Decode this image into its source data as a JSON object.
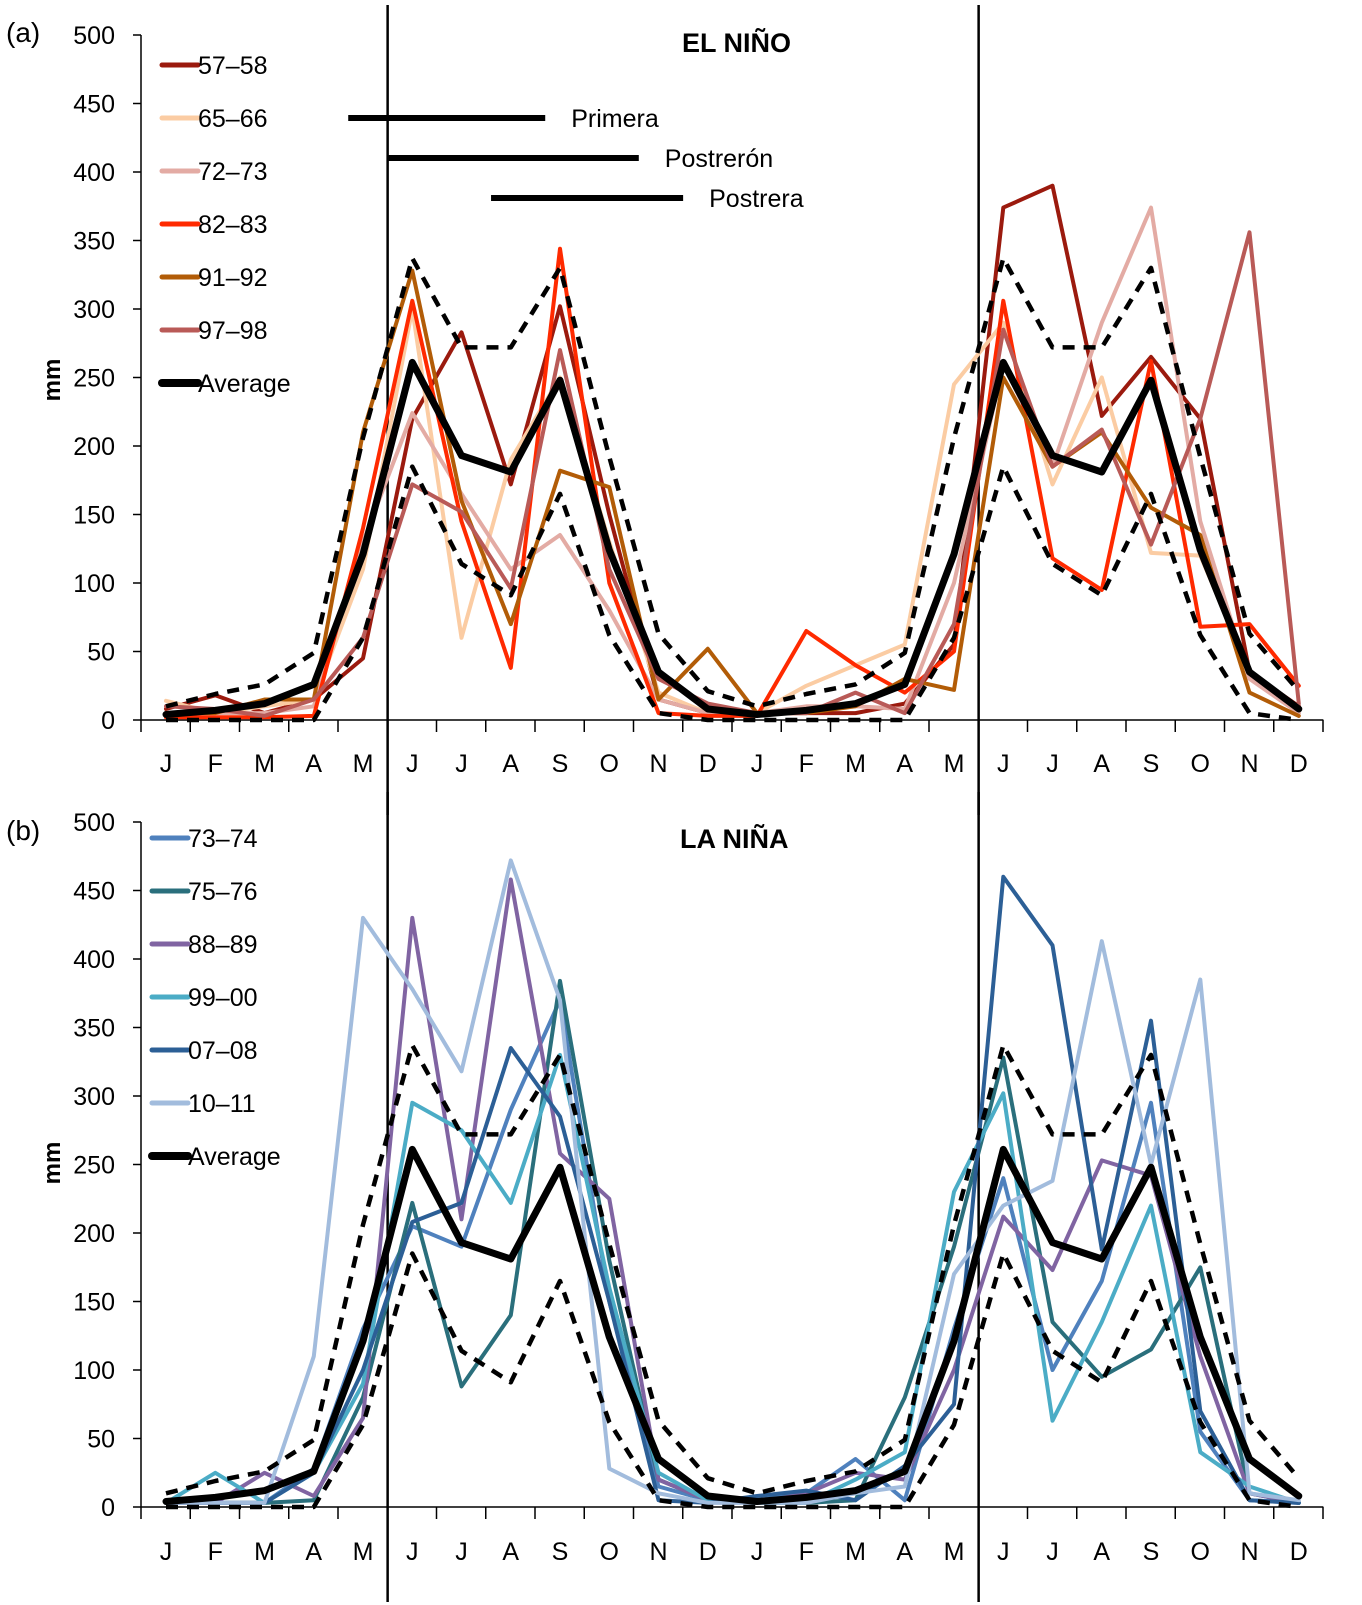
{
  "chart_data": [
    {
      "type": "line",
      "panel_label": "(a)",
      "title": "EL NIÑO",
      "xlabel": "",
      "ylabel": "mm",
      "ylim": [
        0,
        500
      ],
      "yticks": [
        0,
        50,
        100,
        150,
        200,
        250,
        300,
        350,
        400,
        450,
        500
      ],
      "categories": [
        "J",
        "F",
        "M",
        "A",
        "M",
        "J",
        "J",
        "A",
        "S",
        "O",
        "N",
        "D",
        "J",
        "F",
        "M",
        "A",
        "M",
        "J",
        "J",
        "A",
        "S",
        "O",
        "N",
        "D"
      ],
      "vertical_markers_after_category_index": [
        4,
        16
      ],
      "grid": false,
      "legend_position": "top-left",
      "seasons": [
        {
          "name": "Primera",
          "start_index": 3.7,
          "end_index": 7.7
        },
        {
          "name": "Postrerón",
          "start_index": 4.5,
          "end_index": 9.6
        },
        {
          "name": "Postrera",
          "start_index": 6.6,
          "end_index": 10.5
        }
      ],
      "series": [
        {
          "name": "57–58",
          "color": "#9b1a0e",
          "style": "solid",
          "values": [
            8,
            18,
            5,
            15,
            45,
            220,
            283,
            172,
            302,
            150,
            15,
            5,
            5,
            5,
            5,
            12,
            55,
            374,
            390,
            222,
            265,
            220,
            35,
            10
          ]
        },
        {
          "name": "65–66",
          "color": "#fbcca3",
          "style": "solid",
          "values": [
            14,
            5,
            10,
            15,
            110,
            300,
            60,
            190,
            250,
            130,
            20,
            5,
            5,
            25,
            40,
            55,
            245,
            290,
            172,
            250,
            122,
            120,
            35,
            5
          ]
        },
        {
          "name": "72–73",
          "color": "#e3aba4",
          "style": "solid",
          "values": [
            5,
            5,
            5,
            10,
            130,
            224,
            165,
            110,
            135,
            80,
            15,
            5,
            5,
            10,
            10,
            8,
            100,
            260,
            185,
            290,
            374,
            145,
            30,
            5
          ]
        },
        {
          "name": "82–83",
          "color": "#ff2a00",
          "style": "solid",
          "values": [
            2,
            2,
            2,
            3,
            140,
            306,
            145,
            38,
            344,
            100,
            5,
            3,
            3,
            65,
            40,
            20,
            50,
            306,
            118,
            95,
            262,
            68,
            70,
            25
          ]
        },
        {
          "name": "91–92",
          "color": "#b25c07",
          "style": "solid",
          "values": [
            5,
            5,
            15,
            15,
            210,
            328,
            160,
            70,
            182,
            170,
            15,
            52,
            5,
            5,
            10,
            30,
            22,
            250,
            185,
            210,
            155,
            135,
            20,
            3
          ]
        },
        {
          "name": "97–98",
          "color": "#b95a57",
          "style": "solid",
          "values": [
            10,
            8,
            3,
            15,
            60,
            172,
            152,
            96,
            270,
            110,
            30,
            12,
            5,
            5,
            20,
            5,
            70,
            285,
            185,
            212,
            128,
            220,
            356,
            12
          ]
        },
        {
          "name": "Average",
          "color": "#000000",
          "style": "bold",
          "values": [
            4,
            7,
            12,
            26,
            121,
            261,
            193,
            181,
            248,
            124,
            35,
            8,
            4,
            7,
            12,
            26,
            121,
            261,
            193,
            181,
            248,
            124,
            35,
            8
          ]
        },
        {
          "name": "Upper bound",
          "color": "#000000",
          "style": "dashed",
          "in_legend": false,
          "values": [
            10,
            19,
            26,
            49,
            206,
            337,
            272,
            272,
            330,
            192,
            63,
            21,
            10,
            19,
            26,
            49,
            206,
            337,
            272,
            272,
            330,
            192,
            63,
            21
          ]
        },
        {
          "name": "Lower bound",
          "color": "#000000",
          "style": "dashed",
          "in_legend": false,
          "values": [
            0,
            0,
            0,
            0,
            60,
            185,
            114,
            91,
            165,
            62,
            5,
            0,
            0,
            0,
            0,
            0,
            60,
            185,
            114,
            91,
            165,
            62,
            5,
            0
          ]
        }
      ]
    },
    {
      "type": "line",
      "panel_label": "(b)",
      "title": "LA NIÑA",
      "xlabel": "",
      "ylabel": "mm",
      "ylim": [
        0,
        500
      ],
      "yticks": [
        0,
        50,
        100,
        150,
        200,
        250,
        300,
        350,
        400,
        450,
        500
      ],
      "categories": [
        "J",
        "F",
        "M",
        "A",
        "M",
        "J",
        "J",
        "A",
        "S",
        "O",
        "N",
        "D",
        "J",
        "F",
        "M",
        "A",
        "M",
        "J",
        "J",
        "A",
        "S",
        "O",
        "N",
        "D"
      ],
      "vertical_markers_after_category_index": [
        4,
        16
      ],
      "grid": false,
      "legend_position": "top-left",
      "series": [
        {
          "name": "73–74",
          "color": "#4f81bd",
          "style": "solid",
          "values": [
            3,
            3,
            3,
            28,
            130,
            205,
            190,
            290,
            370,
            150,
            15,
            5,
            5,
            10,
            35,
            5,
            130,
            240,
            100,
            165,
            295,
            55,
            5,
            3
          ]
        },
        {
          "name": "75–76",
          "color": "#2a6f7c",
          "style": "solid",
          "values": [
            3,
            3,
            3,
            5,
            80,
            222,
            88,
            140,
            384,
            180,
            20,
            5,
            3,
            3,
            5,
            80,
            190,
            328,
            135,
            95,
            115,
            175,
            10,
            3
          ]
        },
        {
          "name": "88–89",
          "color": "#8064a2",
          "style": "solid",
          "values": [
            3,
            3,
            25,
            8,
            65,
            430,
            210,
            458,
            258,
            225,
            20,
            5,
            3,
            10,
            25,
            20,
            100,
            212,
            173,
            253,
            242,
            110,
            10,
            3
          ]
        },
        {
          "name": "99–00",
          "color": "#4bacc6",
          "style": "solid",
          "values": [
            3,
            25,
            3,
            25,
            90,
            295,
            275,
            222,
            330,
            160,
            25,
            5,
            3,
            3,
            20,
            40,
            230,
            302,
            63,
            135,
            220,
            40,
            15,
            3
          ]
        },
        {
          "name": "07–08",
          "color": "#2c5f96",
          "style": "solid",
          "values": [
            3,
            3,
            3,
            25,
            100,
            208,
            222,
            335,
            285,
            150,
            5,
            3,
            8,
            12,
            5,
            30,
            75,
            460,
            410,
            188,
            355,
            70,
            5,
            3
          ]
        },
        {
          "name": "10–11",
          "color": "#a2bcdd",
          "style": "solid",
          "values": [
            3,
            3,
            3,
            110,
            430,
            378,
            318,
            472,
            370,
            28,
            10,
            3,
            3,
            3,
            10,
            15,
            170,
            220,
            238,
            413,
            250,
            385,
            10,
            5
          ]
        },
        {
          "name": "Average",
          "color": "#000000",
          "style": "bold",
          "values": [
            4,
            7,
            12,
            26,
            121,
            261,
            193,
            181,
            248,
            124,
            35,
            8,
            4,
            7,
            12,
            26,
            121,
            261,
            193,
            181,
            248,
            124,
            35,
            8
          ]
        },
        {
          "name": "Upper bound",
          "color": "#000000",
          "style": "dashed",
          "in_legend": false,
          "values": [
            10,
            19,
            26,
            49,
            206,
            337,
            272,
            272,
            330,
            192,
            63,
            21,
            10,
            19,
            26,
            49,
            206,
            337,
            272,
            272,
            330,
            192,
            63,
            21
          ]
        },
        {
          "name": "Lower bound",
          "color": "#000000",
          "style": "dashed",
          "in_legend": false,
          "values": [
            0,
            0,
            0,
            0,
            60,
            185,
            114,
            91,
            165,
            62,
            5,
            0,
            0,
            0,
            0,
            0,
            60,
            185,
            114,
            91,
            165,
            62,
            5,
            0
          ]
        }
      ]
    }
  ]
}
